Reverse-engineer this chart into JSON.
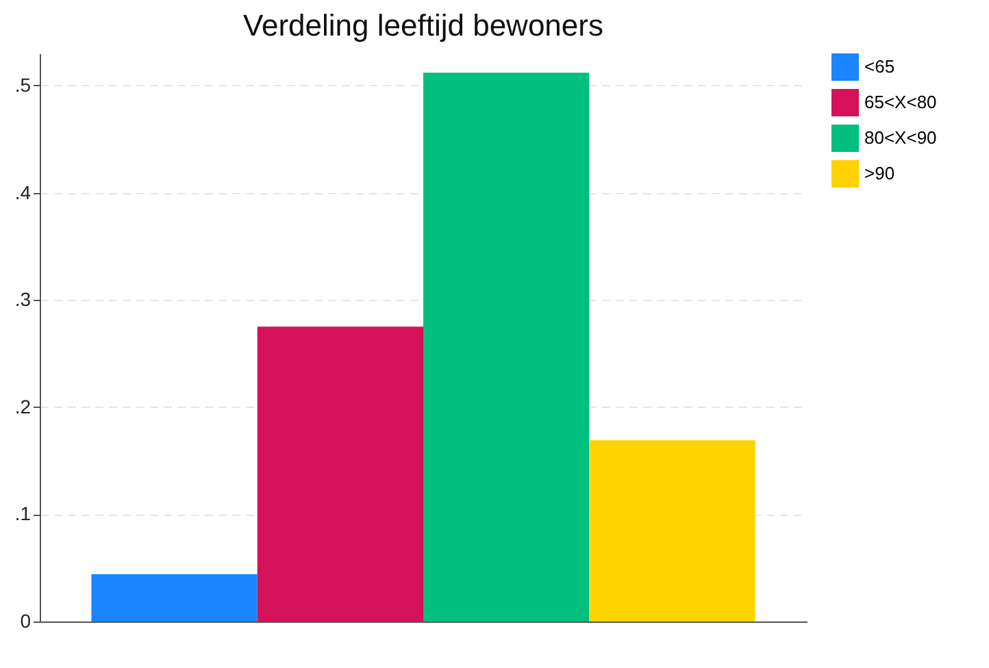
{
  "chart_data": {
    "type": "bar",
    "title": "Verdeling leeftijd bewoners",
    "categories": [
      null
    ],
    "series": [
      {
        "name": "<65",
        "color": "#1a85ff",
        "values": [
          0.044
        ]
      },
      {
        "name": "65<X<80",
        "color": "#d41159",
        "values": [
          0.275
        ]
      },
      {
        "name": "80<X<90",
        "color": "#00bf7f",
        "values": [
          0.512
        ]
      },
      {
        "name": ">90",
        "color": "#ffd200",
        "values": [
          0.169
        ]
      }
    ],
    "ylim": [
      0,
      0.53
    ],
    "yticks": [
      0,
      {
        "value": 0.1,
        "label": ".1"
      },
      {
        "value": 0.2,
        "label": ".2"
      },
      {
        "value": 0.3,
        "label": ".3"
      },
      {
        "value": 0.4,
        "label": ".4"
      },
      {
        "value": 0.5,
        "label": ".5"
      }
    ],
    "grid": "y",
    "legend": "right"
  }
}
